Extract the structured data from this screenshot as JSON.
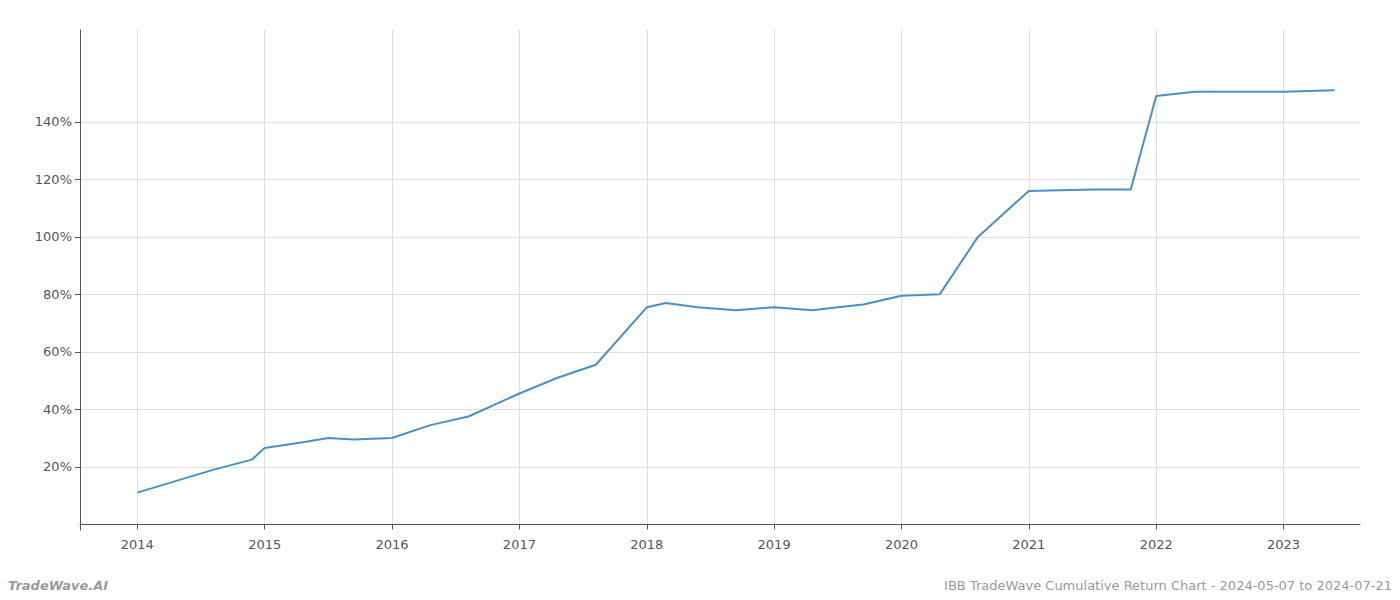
{
  "chart_data": {
    "type": "line",
    "annotations": [
      "TradeWave.AI",
      "IBB TradeWave Cumulative Return Chart - 2024-05-07 to 2024-07-21"
    ],
    "x": [
      2014.0,
      2014.3,
      2014.6,
      2014.9,
      2015.0,
      2015.3,
      2015.5,
      2015.7,
      2016.0,
      2016.3,
      2016.6,
      2017.0,
      2017.3,
      2017.6,
      2018.0,
      2018.15,
      2018.4,
      2018.7,
      2019.0,
      2019.3,
      2019.5,
      2019.7,
      2020.0,
      2020.3,
      2020.6,
      2021.0,
      2021.5,
      2021.8,
      2022.0,
      2022.3,
      2022.7,
      2023.0,
      2023.4
    ],
    "values": [
      0.11,
      0.15,
      0.19,
      0.225,
      0.265,
      0.285,
      0.3,
      0.295,
      0.3,
      0.345,
      0.375,
      0.455,
      0.51,
      0.555,
      0.755,
      0.77,
      0.755,
      0.745,
      0.755,
      0.745,
      0.755,
      0.765,
      0.795,
      0.8,
      1.0,
      1.16,
      1.165,
      1.165,
      1.49,
      1.505,
      1.505,
      1.505,
      1.51
    ],
    "color": "#4a90c4",
    "xlim": [
      2013.55,
      2023.6
    ],
    "xticks": [
      2014,
      2015,
      2016,
      2017,
      2018,
      2019,
      2020,
      2021,
      2022,
      2023
    ],
    "ylim": [
      -0.02,
      1.72
    ],
    "yticks": [
      {
        "value": 0.2,
        "label": "20%"
      },
      {
        "value": 0.4,
        "label": "40%"
      },
      {
        "value": 0.6,
        "label": "60%"
      },
      {
        "value": 0.8,
        "label": "80%"
      },
      {
        "value": 1.0,
        "label": "100%"
      },
      {
        "value": 1.2,
        "label": "120%"
      },
      {
        "value": 1.4,
        "label": "140%"
      }
    ],
    "grid": true
  }
}
